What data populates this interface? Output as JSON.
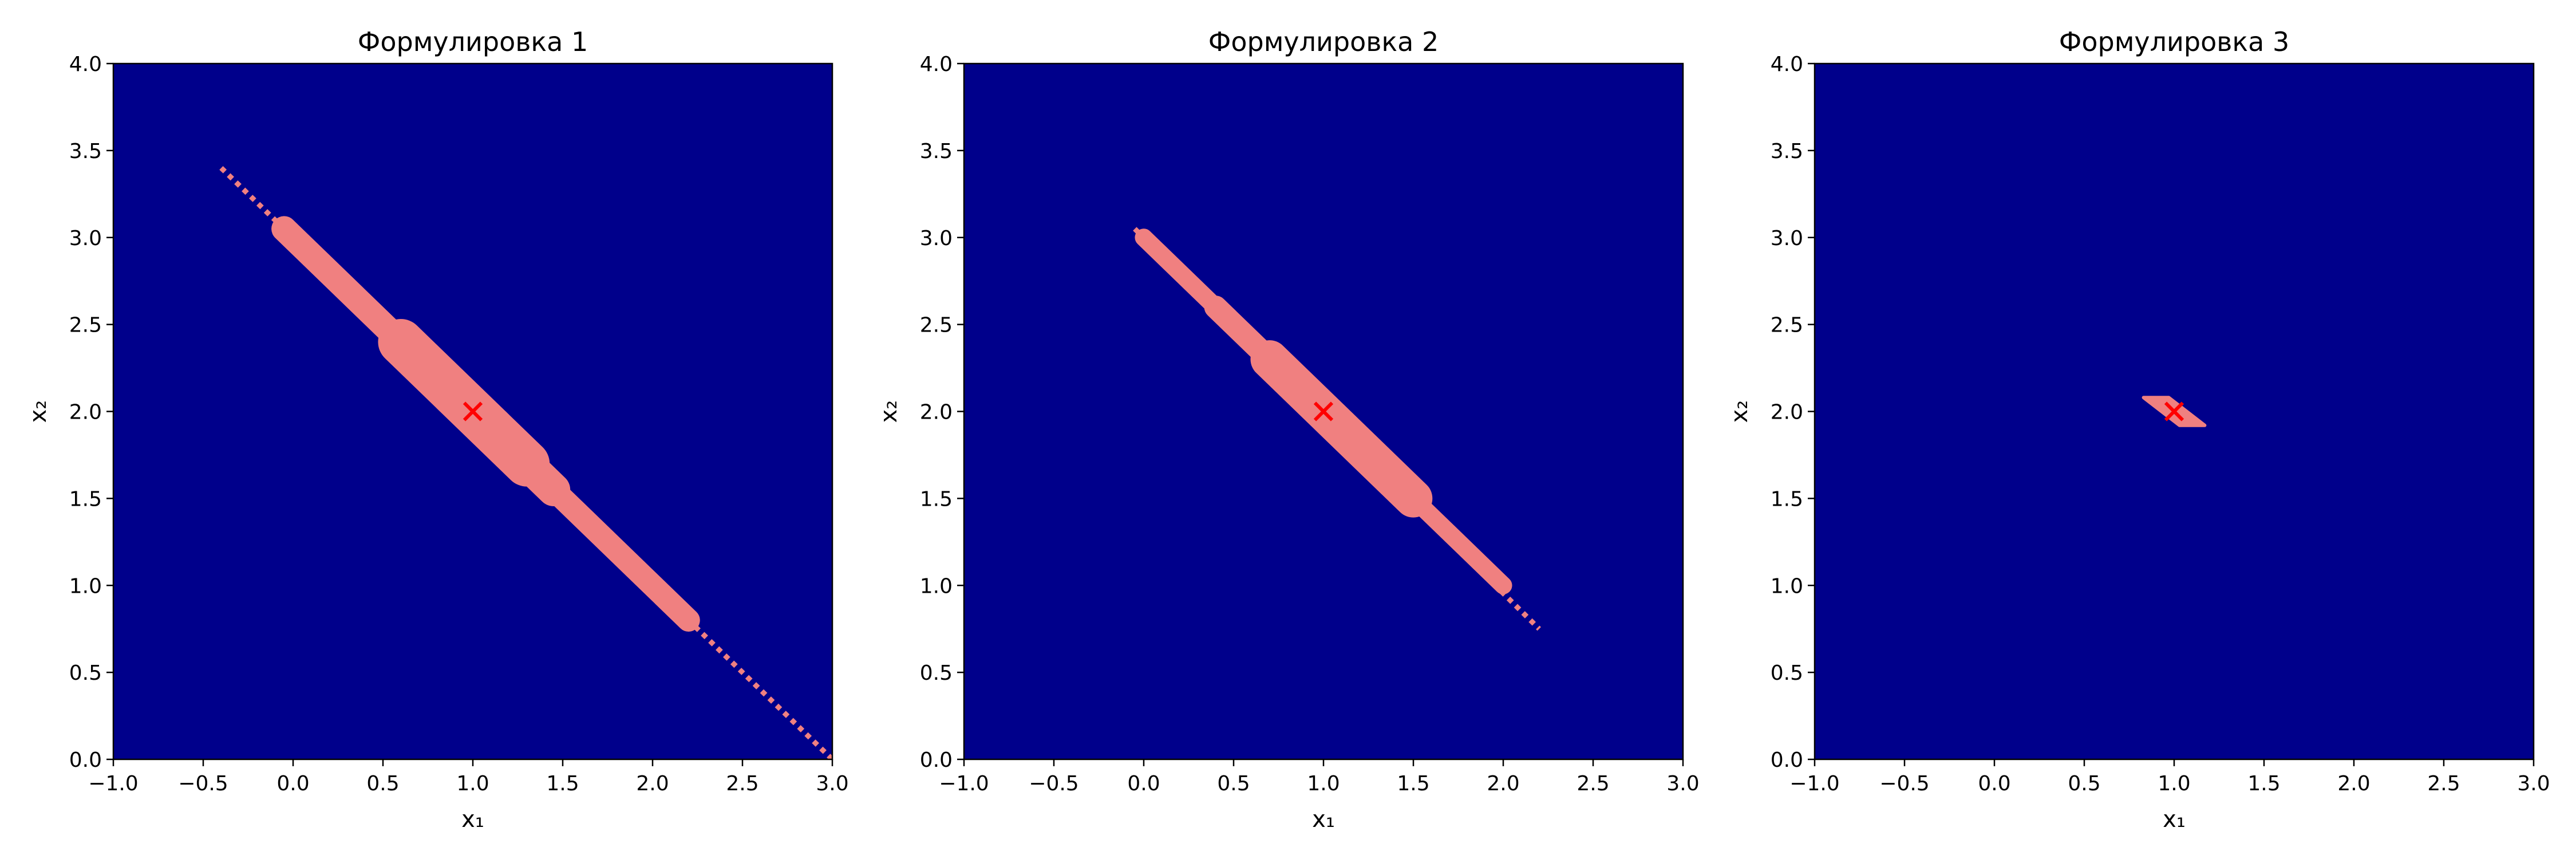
{
  "chart_data": [
    {
      "type": "heatmap",
      "title": "Формулировка 1",
      "xlabel": "x₁",
      "ylabel": "x₂",
      "xlim": [
        -1.0,
        3.0
      ],
      "ylim": [
        0.0,
        4.0
      ],
      "xticks": [
        "−1.0",
        "−0.5",
        "0.0",
        "0.5",
        "1.0",
        "1.5",
        "2.0",
        "2.5",
        "3.0"
      ],
      "yticks": [
        "0.0",
        "0.5",
        "1.0",
        "1.5",
        "2.0",
        "2.5",
        "3.0",
        "3.5",
        "4.0"
      ],
      "grid": false,
      "background_color": "#00008b",
      "region_color": "#f08080",
      "region_segments": [
        {
          "from": [
            -0.05,
            3.05
          ],
          "to": [
            0.6,
            2.4
          ],
          "halfwidth": 0.05
        },
        {
          "from": [
            0.6,
            2.4
          ],
          "to": [
            1.3,
            1.7
          ],
          "halfwidth": 0.09
        },
        {
          "from": [
            1.3,
            1.7
          ],
          "to": [
            1.45,
            1.55
          ],
          "halfwidth": 0.065
        },
        {
          "from": [
            1.45,
            1.55
          ],
          "to": [
            2.2,
            0.8
          ],
          "halfwidth": 0.045
        }
      ],
      "dotted_line": {
        "from": [
          -0.4,
          3.4
        ],
        "to": [
          3.0,
          0.0
        ],
        "color": "#f08080"
      },
      "marker": {
        "x": 1.0,
        "y": 2.0,
        "symbol": "x",
        "color": "#ff0000"
      }
    },
    {
      "type": "heatmap",
      "title": "Формулировка 2",
      "xlabel": "x₁",
      "ylabel": "x₂",
      "xlim": [
        -1.0,
        3.0
      ],
      "ylim": [
        0.0,
        4.0
      ],
      "xticks": [
        "−1.0",
        "−0.5",
        "0.0",
        "0.5",
        "1.0",
        "1.5",
        "2.0",
        "2.5",
        "3.0"
      ],
      "yticks": [
        "0.0",
        "0.5",
        "1.0",
        "1.5",
        "2.0",
        "2.5",
        "3.0",
        "3.5",
        "4.0"
      ],
      "grid": false,
      "background_color": "#00008b",
      "region_color": "#f08080",
      "region_segments": [
        {
          "from": [
            0.0,
            3.0
          ],
          "to": [
            0.4,
            2.6
          ],
          "halfwidth": 0.035
        },
        {
          "from": [
            0.4,
            2.6
          ],
          "to": [
            0.7,
            2.3
          ],
          "halfwidth": 0.045
        },
        {
          "from": [
            0.7,
            2.3
          ],
          "to": [
            1.5,
            1.5
          ],
          "halfwidth": 0.075
        },
        {
          "from": [
            1.5,
            1.5
          ],
          "to": [
            2.0,
            1.0
          ],
          "halfwidth": 0.035
        }
      ],
      "dotted_line": {
        "from": [
          -0.05,
          3.05
        ],
        "to": [
          2.2,
          0.75
        ],
        "color": "#f08080"
      },
      "marker": {
        "x": 1.0,
        "y": 2.0,
        "symbol": "x",
        "color": "#ff0000"
      }
    },
    {
      "type": "heatmap",
      "title": "Формулировка 3",
      "xlabel": "x₁",
      "ylabel": "x₂",
      "xlim": [
        -1.0,
        3.0
      ],
      "ylim": [
        0.0,
        4.0
      ],
      "xticks": [
        "−1.0",
        "−0.5",
        "0.0",
        "0.5",
        "1.0",
        "1.5",
        "2.0",
        "2.5",
        "3.0"
      ],
      "yticks": [
        "0.0",
        "0.5",
        "1.0",
        "1.5",
        "2.0",
        "2.5",
        "3.0",
        "3.5",
        "4.0"
      ],
      "grid": false,
      "background_color": "#00008b",
      "region_color": "#f08080",
      "region_polygon": [
        [
          0.83,
          2.08
        ],
        [
          0.97,
          2.08
        ],
        [
          1.17,
          1.92
        ],
        [
          1.03,
          1.92
        ]
      ],
      "marker": {
        "x": 1.0,
        "y": 2.0,
        "symbol": "x",
        "color": "#ff0000"
      }
    }
  ]
}
